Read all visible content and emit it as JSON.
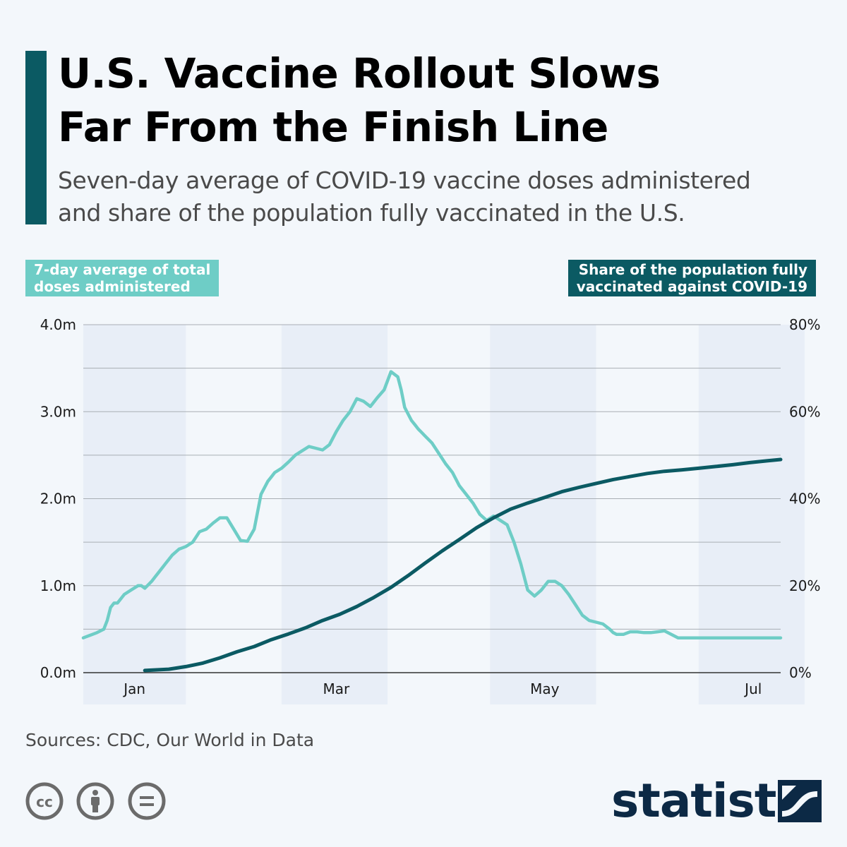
{
  "title": "U.S. Vaccine Rollout Slows\nFar From the Finish Line",
  "subtitle": "Seven-day average of COVID-19 vaccine doses administered\nand share of the population fully vaccinated in the U.S.",
  "legend_left": "7-day average of total\ndoses administered",
  "legend_right": "Share of the population fully\nvaccinated against COVID-19",
  "sources": "Sources: CDC, Our World in Data",
  "brand": "statista",
  "icons": [
    "cc-icon",
    "attribution-icon",
    "no-derivatives-icon",
    "statista-logo-icon"
  ],
  "colors": {
    "doses": "#6ecdc6",
    "share": "#0b5a63",
    "accent": "#0b5a63",
    "band": "#e8eef7",
    "brand": "#0c2945"
  },
  "chart_data": {
    "type": "line",
    "x_axis": {
      "unit": "day of 2021",
      "ticks": [
        {
          "label": "Jan",
          "day": 15
        },
        {
          "label": "Mar",
          "day": 74
        },
        {
          "label": "May",
          "day": 135
        },
        {
          "label": "Jul",
          "day": 196
        }
      ]
    },
    "y_left": {
      "ticks": [
        "4.0m",
        "3.0m",
        "2.0m",
        "1.0m",
        "0.0m"
      ],
      "ylim": [
        0,
        4000000
      ]
    },
    "y_right": {
      "ticks": [
        "80%",
        "60%",
        "40%",
        "20%",
        "0%"
      ],
      "ylim": [
        0,
        80
      ]
    },
    "grid": true,
    "month_bands": [
      [
        0,
        30
      ],
      [
        58,
        89
      ],
      [
        119,
        150
      ],
      [
        180,
        211
      ]
    ],
    "series": [
      {
        "name": "7-day average of total doses administered",
        "axis": "left",
        "x": [
          0,
          2,
          4,
          6,
          7,
          8,
          9,
          10,
          12,
          14,
          16,
          17,
          18,
          20,
          21,
          22,
          24,
          26,
          28,
          30,
          32,
          34,
          36,
          38,
          40,
          42,
          44,
          46,
          48,
          50,
          52,
          54,
          55,
          56,
          58,
          60,
          62,
          64,
          66,
          68,
          70,
          72,
          74,
          76,
          78,
          80,
          82,
          84,
          86,
          88,
          90,
          92,
          93,
          94,
          96,
          97,
          98,
          99,
          100,
          102,
          104,
          106,
          108,
          110,
          112,
          114,
          116,
          118,
          120,
          122,
          124,
          126,
          128,
          130,
          132,
          134,
          136,
          138,
          140,
          142,
          144,
          146,
          148,
          150,
          152,
          154,
          155,
          156,
          158,
          160,
          162,
          164,
          166,
          168,
          170,
          172,
          174,
          176,
          178,
          180,
          182,
          184,
          186,
          188,
          190,
          192,
          194,
          196,
          198,
          200,
          202,
          204
        ],
        "y": [
          400000,
          430000,
          460000,
          500000,
          600000,
          750000,
          800000,
          800000,
          900000,
          950000,
          1000000,
          1000000,
          970000,
          1050000,
          1100000,
          1150000,
          1250000,
          1350000,
          1420000,
          1450000,
          1500000,
          1620000,
          1650000,
          1720000,
          1780000,
          1780000,
          1650000,
          1520000,
          1510000,
          1650000,
          2050000,
          2200000,
          2250000,
          2300000,
          2350000,
          2420000,
          2500000,
          2550000,
          2600000,
          2580000,
          2560000,
          2620000,
          2770000,
          2900000,
          3000000,
          3150000,
          3120000,
          3060000,
          3160000,
          3250000,
          3460000,
          3400000,
          3250000,
          3050000,
          2900000,
          2850000,
          2800000,
          2760000,
          2720000,
          2640000,
          2520000,
          2400000,
          2300000,
          2150000,
          2050000,
          1950000,
          1820000,
          1750000,
          1800000,
          1750000,
          1700000,
          1500000,
          1250000,
          950000,
          880000,
          950000,
          1050000,
          1050000,
          1000000,
          900000,
          780000,
          660000,
          600000,
          580000,
          560000,
          500000,
          460000,
          440000,
          440000,
          470000,
          470000,
          460000,
          460000,
          470000,
          480000,
          440000,
          400000,
          400000,
          400000,
          400000,
          400000,
          400000,
          400000,
          400000,
          400000,
          400000,
          400000,
          400000,
          400000,
          400000,
          400000,
          400000
        ],
        "color": "#6ecdc6"
      },
      {
        "name": "Share of the population fully vaccinated against COVID-19",
        "axis": "right",
        "x": [
          18,
          25,
          30,
          35,
          40,
          45,
          50,
          55,
          60,
          65,
          70,
          75,
          80,
          85,
          90,
          95,
          100,
          105,
          110,
          115,
          120,
          125,
          130,
          135,
          140,
          145,
          150,
          155,
          160,
          165,
          170,
          175,
          180,
          185,
          190,
          195,
          200,
          204
        ],
        "y": [
          0.5,
          0.8,
          1.4,
          2.2,
          3.4,
          4.8,
          6.0,
          7.6,
          8.9,
          10.3,
          12.0,
          13.4,
          15.2,
          17.3,
          19.6,
          22.3,
          25.2,
          28.0,
          30.6,
          33.3,
          35.6,
          37.6,
          39.0,
          40.3,
          41.6,
          42.6,
          43.5,
          44.4,
          45.1,
          45.8,
          46.3,
          46.6,
          47.0,
          47.4,
          47.8,
          48.3,
          48.7,
          49.0
        ],
        "color": "#0b5a63"
      }
    ]
  }
}
